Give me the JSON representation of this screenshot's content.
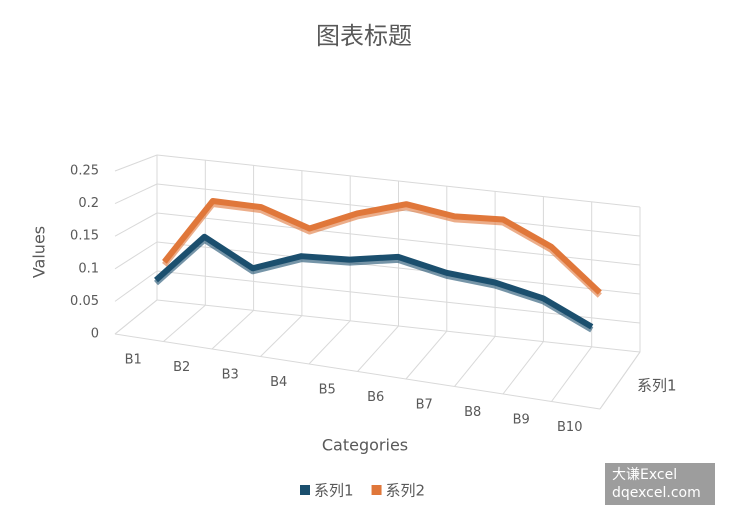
{
  "chart_data": {
    "type": "line3d",
    "title": "图表标题",
    "x_label": "Categories",
    "y_label": "Values",
    "depth_label": "系列1",
    "categories": [
      "B1",
      "B2",
      "B3",
      "B4",
      "B5",
      "B6",
      "B7",
      "B8",
      "B9",
      "B10"
    ],
    "series": [
      {
        "name": "系列1",
        "color": "#1b4f6e",
        "values": [
          0.07,
          0.15,
          0.11,
          0.14,
          0.145,
          0.16,
          0.145,
          0.14,
          0.125,
          0.09
        ]
      },
      {
        "name": "系列2",
        "color": "#e0773a",
        "values": [
          0.09,
          0.2,
          0.2,
          0.175,
          0.21,
          0.235,
          0.225,
          0.23,
          0.195,
          0.13
        ]
      }
    ],
    "ylim": [
      0,
      0.25
    ],
    "yticks": [
      0,
      0.05,
      0.1,
      0.15,
      0.2,
      0.25
    ],
    "grid": true,
    "legend": "bottom"
  },
  "watermark": {
    "line1": "大谦Excel",
    "line2": "dqexcel.com"
  }
}
